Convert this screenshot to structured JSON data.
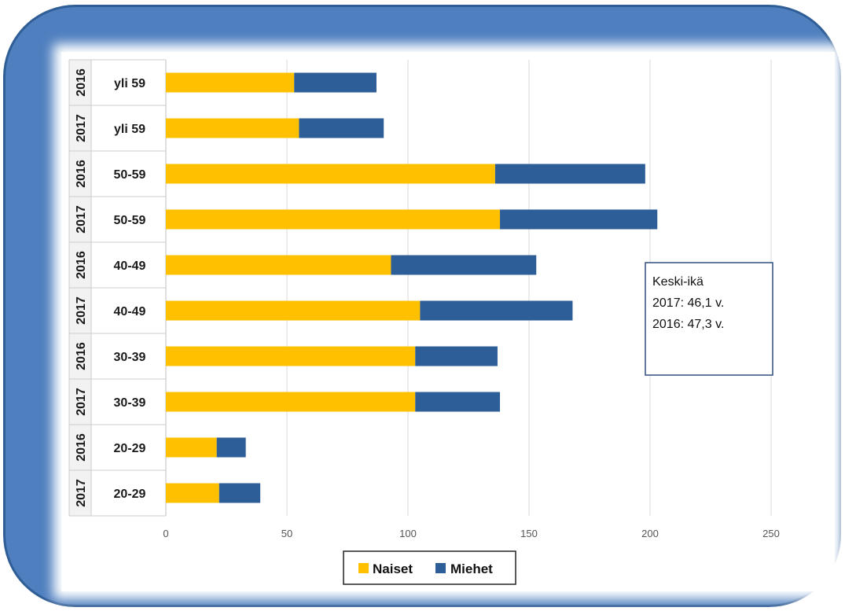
{
  "chart_data": {
    "type": "bar",
    "orientation": "horizontal",
    "stacked": true,
    "categories": [
      {
        "year": "2016",
        "age": "yli 59"
      },
      {
        "year": "2017",
        "age": "yli 59"
      },
      {
        "year": "2016",
        "age": "50-59"
      },
      {
        "year": "2017",
        "age": "50-59"
      },
      {
        "year": "2016",
        "age": "40-49"
      },
      {
        "year": "2017",
        "age": "40-49"
      },
      {
        "year": "2016",
        "age": "30-39"
      },
      {
        "year": "2017",
        "age": "30-39"
      },
      {
        "year": "2016",
        "age": "20-29"
      },
      {
        "year": "2017",
        "age": "20-29"
      }
    ],
    "series": [
      {
        "name": "Naiset",
        "color": "#ffc000",
        "values": [
          53,
          55,
          136,
          138,
          93,
          105,
          103,
          103,
          21,
          22
        ]
      },
      {
        "name": "Miehet",
        "color": "#2e5e98",
        "values": [
          34,
          35,
          62,
          65,
          60,
          63,
          34,
          35,
          12,
          17
        ]
      }
    ],
    "xlim": [
      0,
      250
    ],
    "xticks": [
      "0",
      "50",
      "100",
      "150",
      "200",
      "250"
    ],
    "grid": "vertical",
    "legend_position": "bottom",
    "annotation": [
      "Keski-ikä",
      "2017: 46,1 v.",
      "2016: 47,3 v."
    ]
  }
}
